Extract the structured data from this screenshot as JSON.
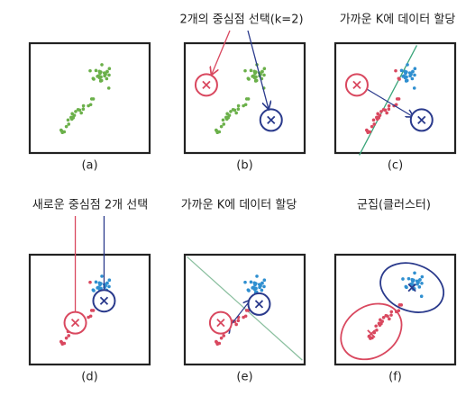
{
  "panels": [
    {
      "label": "(a)"
    },
    {
      "label": "(b)",
      "heading": "2개의 중심점 선택(k=2)"
    },
    {
      "label": "(c)",
      "heading": "가까운 K에 데이터 할당"
    },
    {
      "label": "(d)",
      "heading": "새로운 중심점 2개 선택"
    },
    {
      "label": "(e)",
      "heading": "가까운 K에 데이터 할당"
    },
    {
      "label": "(f)",
      "heading": "군집(클러스터)"
    }
  ]
}
